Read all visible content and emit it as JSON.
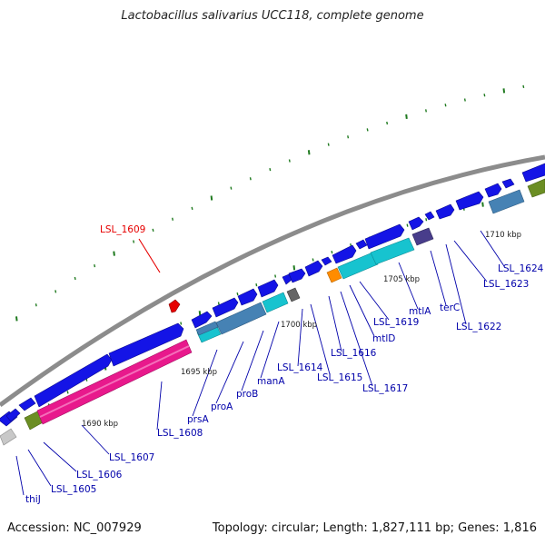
{
  "map": {
    "title": "Lactobacillus salivarius UCC118, complete genome",
    "accession": "Accession: NC_007929",
    "summary": "Topology: circular; Length: 1,827,111 bp; Genes: 1,816",
    "scale_ticks": [
      "1690 kbp",
      "1695 kbp",
      "1700 kbp",
      "1705 kbp",
      "1710 kbp"
    ],
    "highlight_gene": "LSL_1609",
    "genes": [
      "thiJ",
      "LSL_1605",
      "LSL_1606",
      "LSL_1607",
      "LSL_1608",
      "prsA",
      "proA",
      "proB",
      "manA",
      "LSL_1614",
      "LSL_1615",
      "LSL_1616",
      "LSL_1617",
      "mtlD",
      "LSL_1619",
      "mtlA",
      "terC",
      "LSL_1622",
      "LSL_1623",
      "LSL_1624"
    ],
    "colors": {
      "backbone": "#8c8c8c",
      "gene_default": "#1414e6",
      "highlight": "#e60000",
      "label_text": "#0000aa",
      "magenta": "#e8198c",
      "cyan": "#17c3cf",
      "olive": "#6b8e23",
      "steel": "#4682b4",
      "orange": "#ff8c00",
      "purple": "#483d8b",
      "tick_green": "#1f7a1f"
    }
  }
}
